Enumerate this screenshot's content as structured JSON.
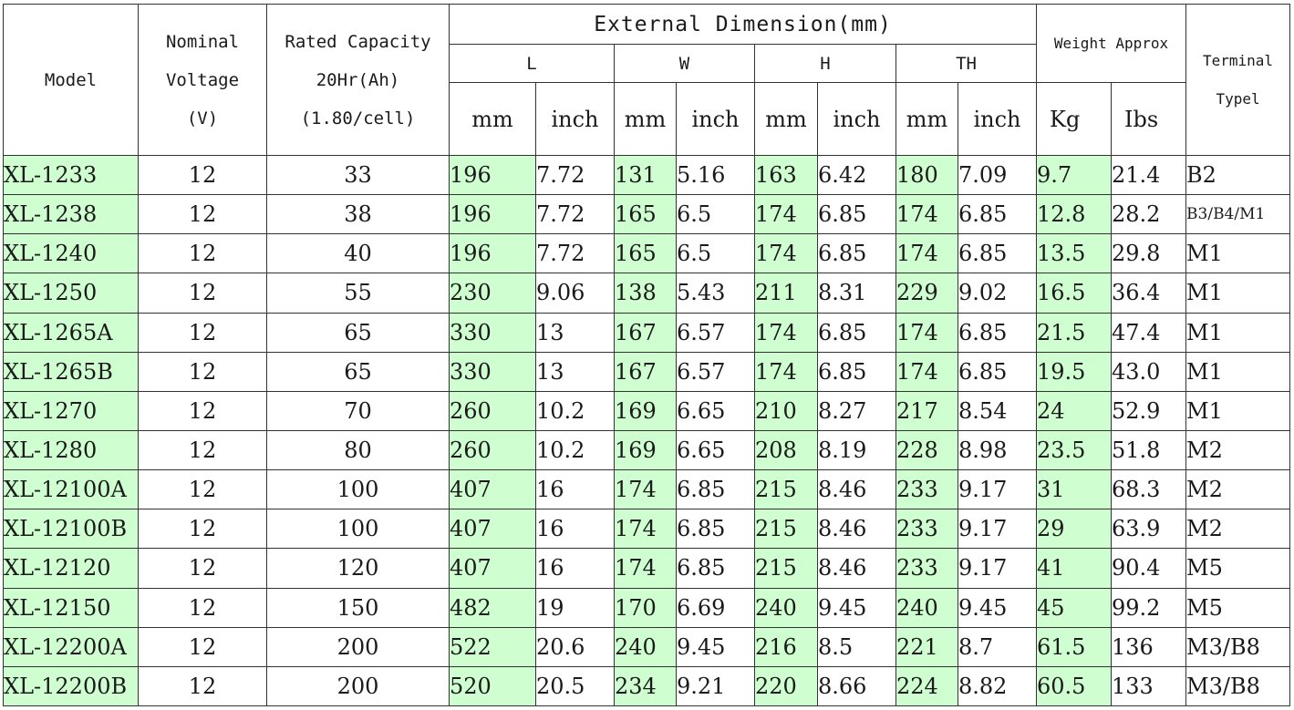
{
  "headers": {
    "model": "Model",
    "voltage": [
      "Nominal",
      "Voltage",
      "(V)"
    ],
    "capacity": [
      "Rated Capacity",
      "20Hr(Ah)",
      "(1.80/cell)"
    ],
    "external_dimension": "External Dimension(mm)",
    "dims": [
      "L",
      "W",
      "H",
      "TH"
    ],
    "weight": "Weight Approx",
    "terminal": [
      "Terminal",
      "Typel"
    ],
    "units": [
      "mm",
      "inch",
      "mm",
      "inch",
      "mm",
      "inch",
      "mm",
      "inch",
      "Kg",
      "Ibs"
    ]
  },
  "rows": [
    [
      "XL-1233",
      "12",
      "33",
      "196",
      "7.72",
      "131",
      "5.16",
      "163",
      "6.42",
      "180",
      "7.09",
      "9.7",
      "21.4",
      "B2"
    ],
    [
      "XL-1238",
      "12",
      "38",
      "196",
      "7.72",
      "165",
      "6.5",
      "174",
      "6.85",
      "174",
      "6.85",
      "12.8",
      "28.2",
      "B3/B4/M1"
    ],
    [
      "XL-1240",
      "12",
      "40",
      "196",
      "7.72",
      "165",
      "6.5",
      "174",
      "6.85",
      "174",
      "6.85",
      "13.5",
      "29.8",
      "M1"
    ],
    [
      "XL-1250",
      "12",
      "55",
      "230",
      "9.06",
      "138",
      "5.43",
      "211",
      "8.31",
      "229",
      "9.02",
      "16.5",
      "36.4",
      "M1"
    ],
    [
      "XL-1265A",
      "12",
      "65",
      "330",
      "13",
      "167",
      "6.57",
      "174",
      "6.85",
      "174",
      "6.85",
      "21.5",
      "47.4",
      "M1"
    ],
    [
      "XL-1265B",
      "12",
      "65",
      "330",
      "13",
      "167",
      "6.57",
      "174",
      "6.85",
      "174",
      "6.85",
      "19.5",
      "43.0",
      "M1"
    ],
    [
      "XL-1270",
      "12",
      "70",
      "260",
      "10.2",
      "169",
      "6.65",
      "210",
      "8.27",
      "217",
      "8.54",
      "24",
      "52.9",
      "M1"
    ],
    [
      "XL-1280",
      "12",
      "80",
      "260",
      "10.2",
      "169",
      "6.65",
      "208",
      "8.19",
      "228",
      "8.98",
      "23.5",
      "51.8",
      "M2"
    ],
    [
      "XL-12100A",
      "12",
      "100",
      "407",
      "16",
      "174",
      "6.85",
      "215",
      "8.46",
      "233",
      "9.17",
      "31",
      "68.3",
      "M2"
    ],
    [
      "XL-12100B",
      "12",
      "100",
      "407",
      "16",
      "174",
      "6.85",
      "215",
      "8.46",
      "233",
      "9.17",
      "29",
      "63.9",
      "M2"
    ],
    [
      "XL-12120",
      "12",
      "120",
      "407",
      "16",
      "174",
      "6.85",
      "215",
      "8.46",
      "233",
      "9.17",
      "41",
      "90.4",
      "M5"
    ],
    [
      "XL-12150",
      "12",
      "150",
      "482",
      "19",
      "170",
      "6.69",
      "240",
      "9.45",
      "240",
      "9.45",
      "45",
      "99.2",
      "M5"
    ],
    [
      "XL-12200A",
      "12",
      "200",
      "522",
      "20.6",
      "240",
      "9.45",
      "216",
      "8.5",
      "221",
      "8.7",
      "61.5",
      "136",
      "M3/B8"
    ],
    [
      "XL-12200B",
      "12",
      "200",
      "520",
      "20.5",
      "234",
      "9.21",
      "220",
      "8.66",
      "224",
      "8.82",
      "60.5",
      "133",
      "M3/B8"
    ]
  ],
  "colors": {
    "highlight": "#cfffd0",
    "border": "#333333",
    "text": "#1a1a1a"
  }
}
